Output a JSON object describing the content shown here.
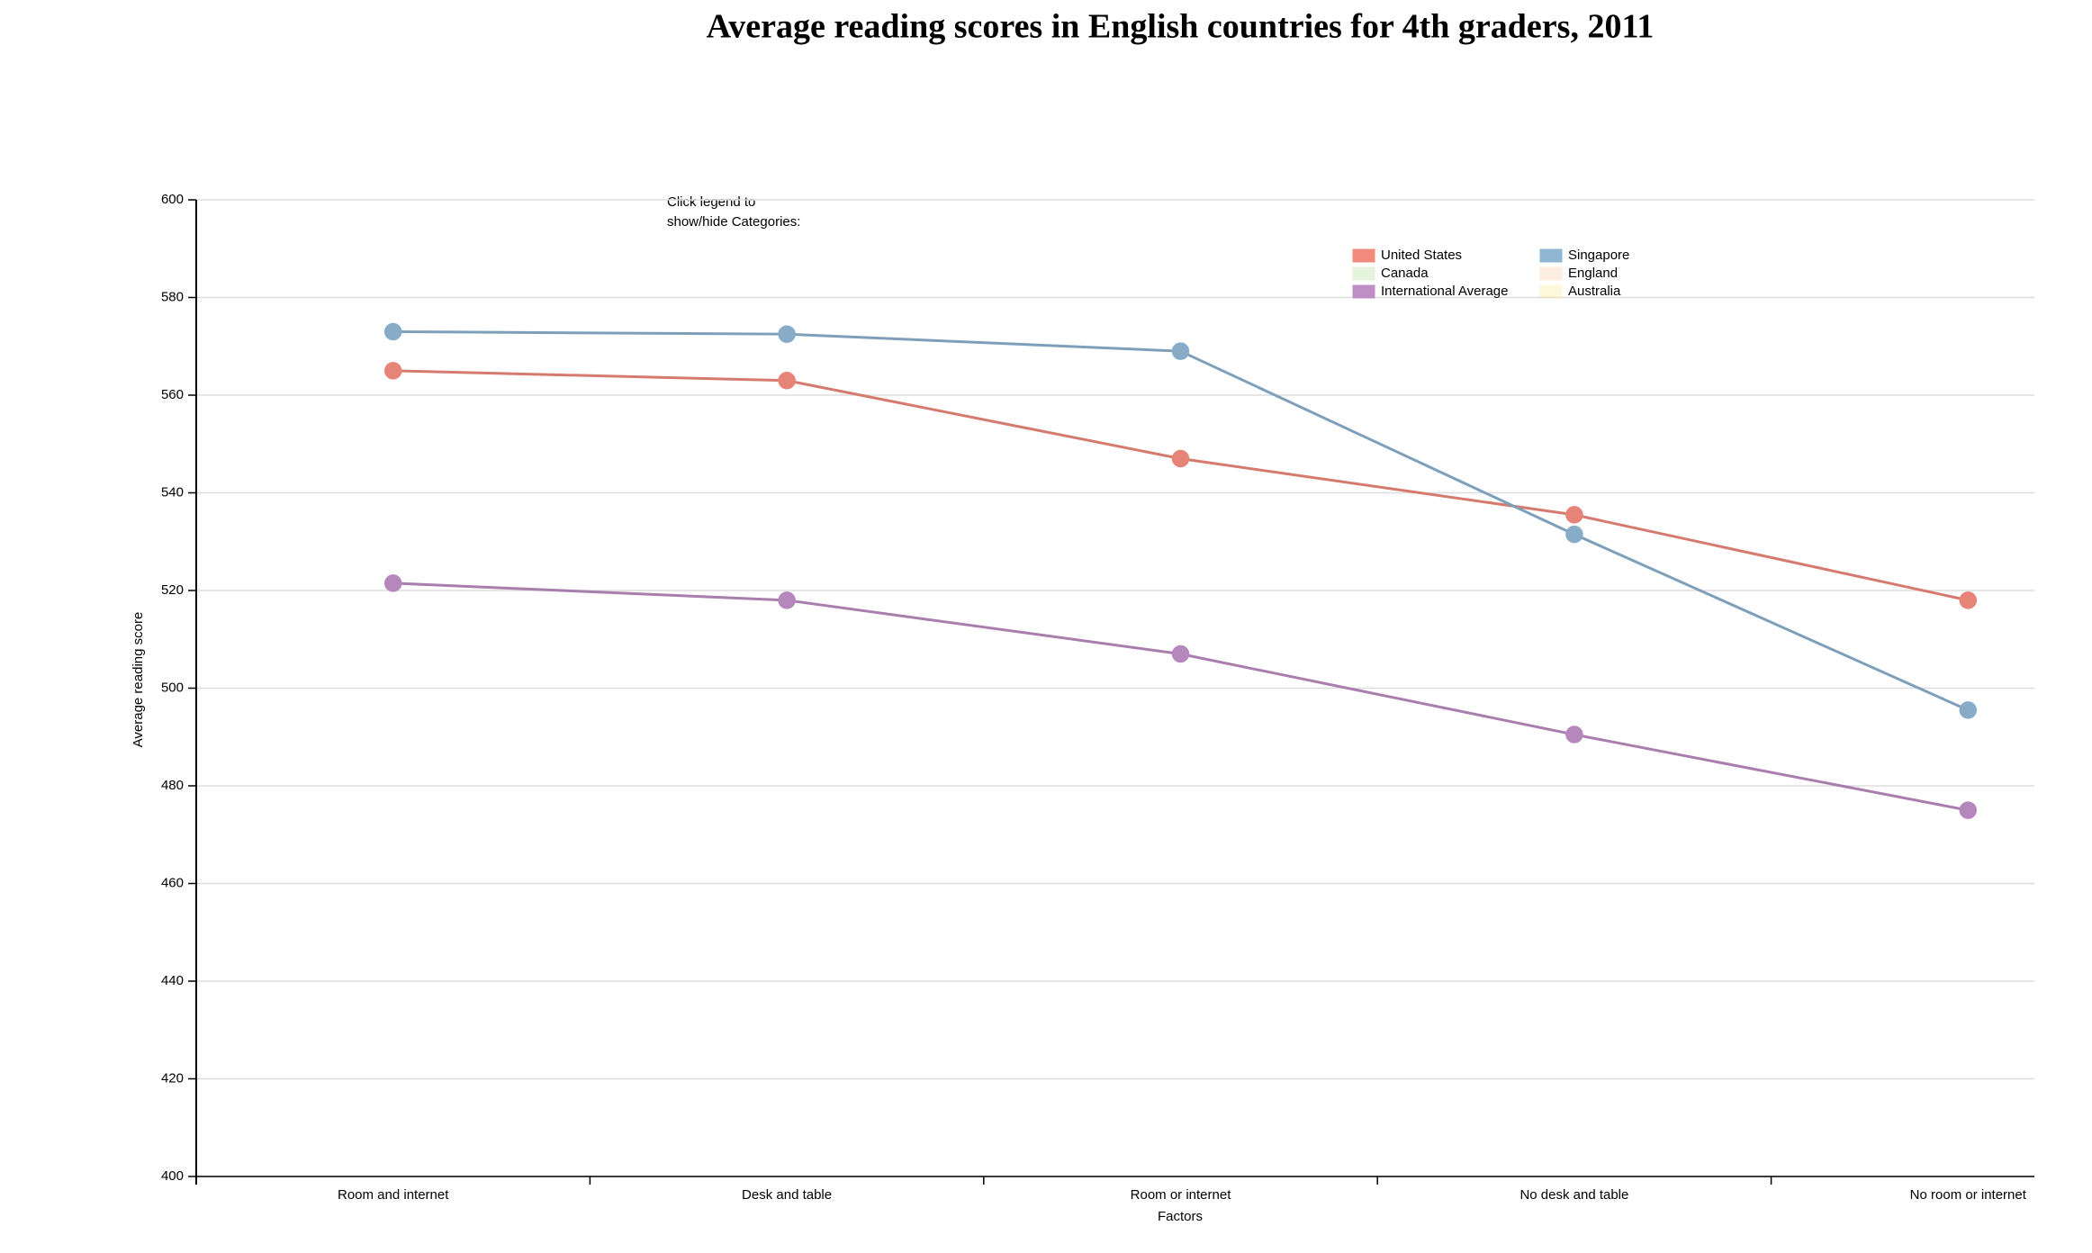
{
  "chart_data": {
    "type": "line",
    "title": "Average reading scores in English countries for 4th graders, 2011",
    "note": [
      "Click legend to",
      "show/hide Categories:"
    ],
    "x_label": "Factors",
    "y_label": "Average reading score",
    "categories": [
      "Room and internet",
      "Desk and table",
      "Room or internet",
      "No desk and table",
      "No room or internet"
    ],
    "series": [
      {
        "name": "United States",
        "color": "#f28b7d",
        "visible": true,
        "values": [
          565,
          563,
          547,
          535.5,
          518
        ]
      },
      {
        "name": "Singapore",
        "color": "#8fb5d3",
        "visible": true,
        "values": [
          573,
          572.5,
          569,
          531.5,
          495.5
        ]
      },
      {
        "name": "Canada",
        "color": "#a8dd98",
        "visible": false,
        "values": [
          null,
          null,
          null,
          null,
          null
        ]
      },
      {
        "name": "England",
        "color": "#fdc69a",
        "visible": false,
        "values": [
          null,
          null,
          null,
          null,
          null
        ]
      },
      {
        "name": "International Average",
        "color": "#c08ec6",
        "visible": true,
        "values": [
          521.5,
          518,
          507,
          490.5,
          475
        ]
      },
      {
        "name": "Australia",
        "color": "#fde68a",
        "visible": false,
        "values": [
          null,
          null,
          null,
          null,
          null
        ]
      }
    ],
    "ylim": [
      400,
      600
    ],
    "yticks": [
      400,
      420,
      440,
      460,
      480,
      500,
      520,
      540,
      560,
      580,
      600
    ],
    "grid": true
  }
}
